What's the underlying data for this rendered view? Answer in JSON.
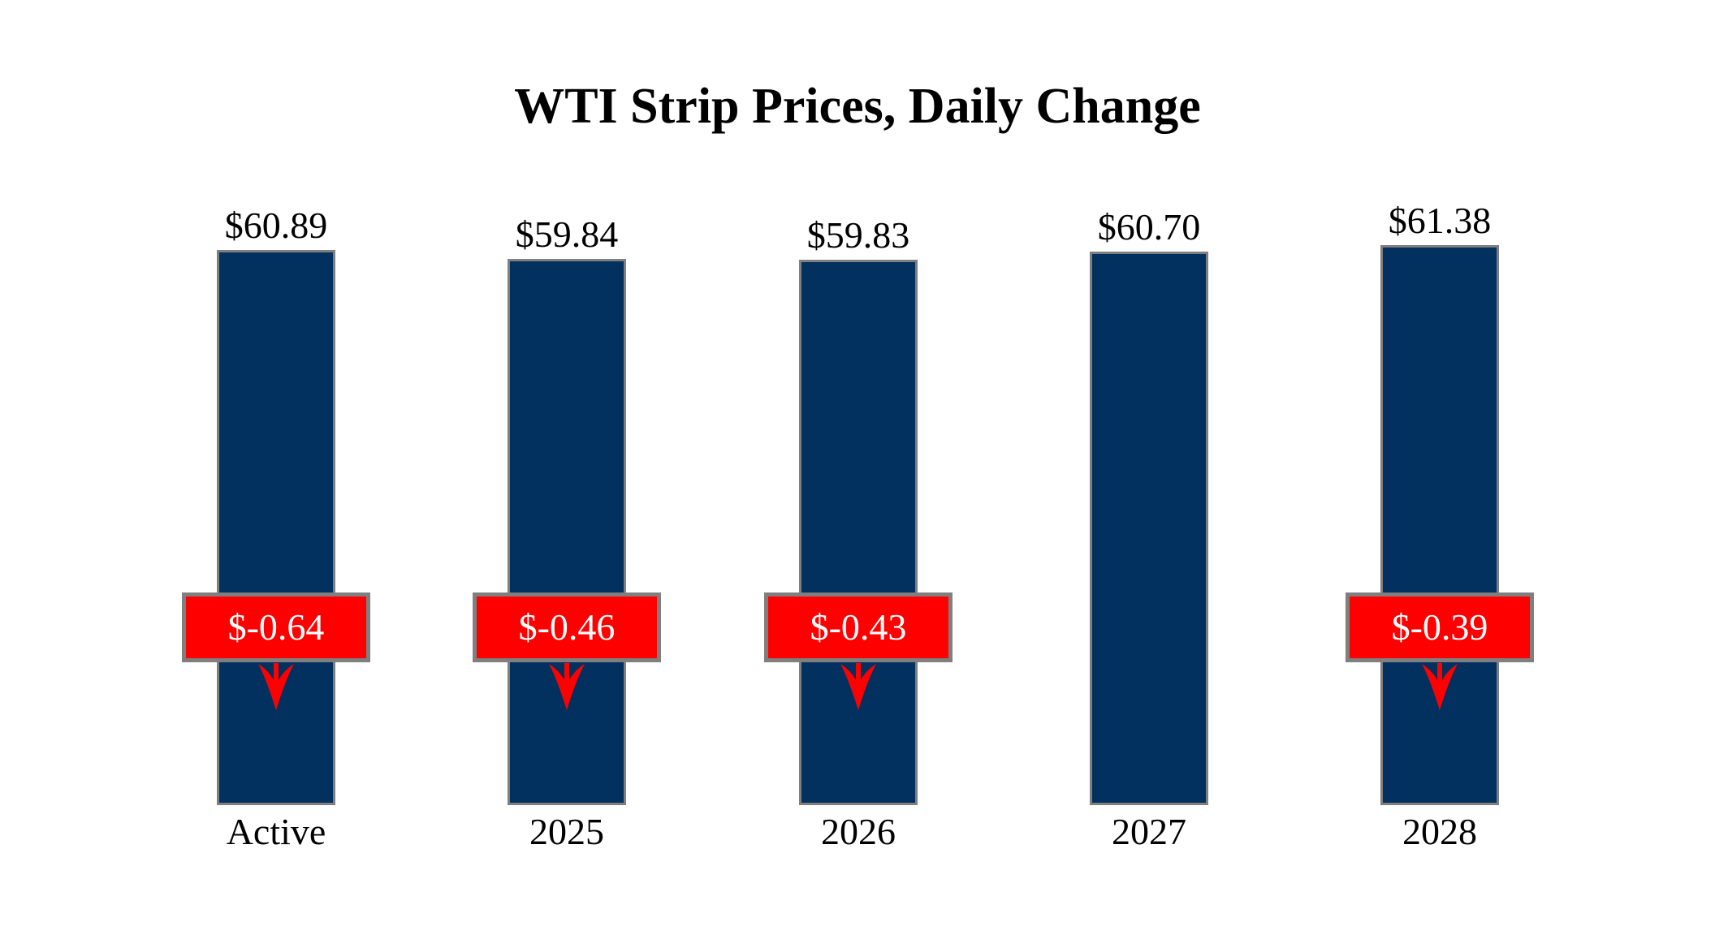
{
  "colors": {
    "bar": "#02305f",
    "bar_border": "#7f7f7f",
    "change_bg": "#ff0000",
    "change_border": "#7f7f7f",
    "change_text": "#ffffff",
    "arrow": "#ff0000",
    "title_text": "#000000",
    "page_bg": "#ffffff"
  },
  "chart_data": {
    "type": "bar",
    "title": "WTI Strip Prices, Daily Change",
    "categories": [
      "Active",
      "2025",
      "2026",
      "2027",
      "2028"
    ],
    "values": [
      60.89,
      59.84,
      59.83,
      60.7,
      61.38
    ],
    "value_labels": [
      "$60.89",
      "$59.84",
      "$59.83",
      "$60.70",
      "$61.38"
    ],
    "daily_changes": [
      -0.64,
      -0.46,
      -0.43,
      null,
      -0.39
    ],
    "change_labels": [
      "$-0.64",
      "$-0.46",
      "$-0.43",
      null,
      "$-0.39"
    ],
    "ylim": [
      0,
      61.38
    ],
    "grid": false,
    "legend": false,
    "bar_orientation": "vertical"
  }
}
